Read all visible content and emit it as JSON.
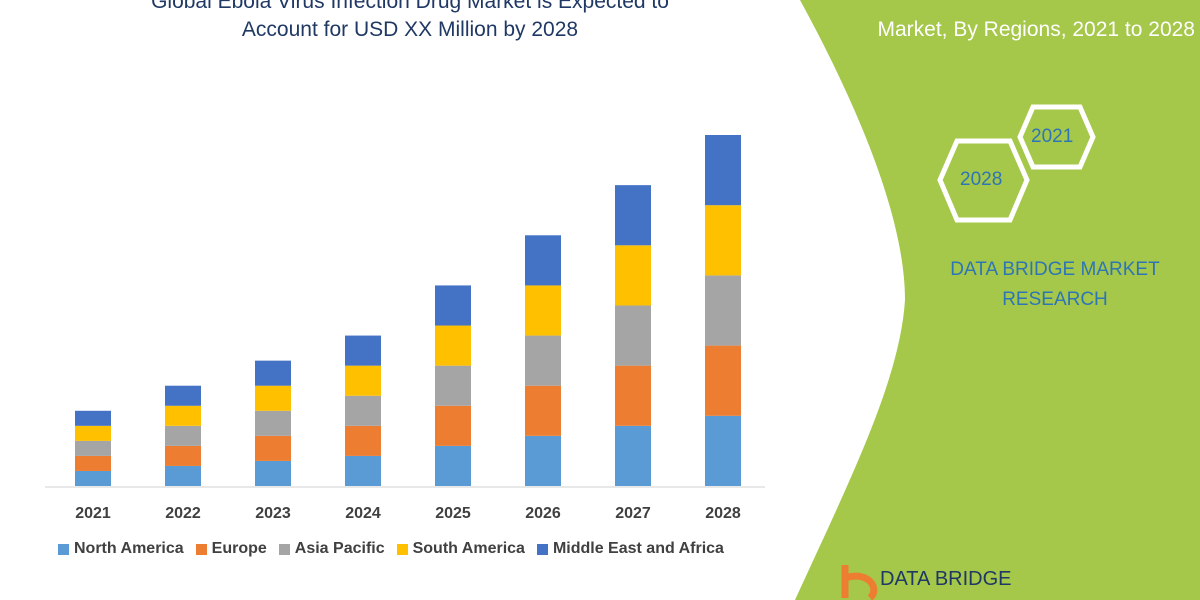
{
  "title_line1": "Global Ebola Virus Infection Drug Market is Expected to",
  "title_line2": "Account for USD XX Million by 2028",
  "right_title": "Market, By Regions, 2021 to 2028",
  "hex_labels": [
    "2021",
    "2028"
  ],
  "brand": {
    "line1": "DATA BRIDGE MARKET",
    "line2": "RESEARCH",
    "logo_text": "DATA BRIDGE"
  },
  "colors": {
    "panel": "#a5c74a",
    "title": "#1f3864"
  },
  "chart_data": {
    "type": "bar",
    "stacked": true,
    "categories": [
      "2021",
      "2022",
      "2023",
      "2024",
      "2025",
      "2026",
      "2027",
      "2028"
    ],
    "series": [
      {
        "name": "North America",
        "color": "#5b9bd5",
        "values": [
          15,
          20,
          25,
          30,
          40,
          50,
          60,
          70
        ]
      },
      {
        "name": "Europe",
        "color": "#ed7d31",
        "values": [
          15,
          20,
          25,
          30,
          40,
          50,
          60,
          70
        ]
      },
      {
        "name": "Asia Pacific",
        "color": "#a5a5a5",
        "values": [
          15,
          20,
          25,
          30,
          40,
          50,
          60,
          70
        ]
      },
      {
        "name": "South America",
        "color": "#ffc000",
        "values": [
          15,
          20,
          25,
          30,
          40,
          50,
          60,
          70
        ]
      },
      {
        "name": "Middle East and Africa",
        "color": "#4472c4",
        "values": [
          15,
          20,
          25,
          30,
          40,
          50,
          60,
          70
        ]
      }
    ],
    "ylim": [
      0,
      350
    ],
    "grid": false,
    "legend": "bottom"
  }
}
